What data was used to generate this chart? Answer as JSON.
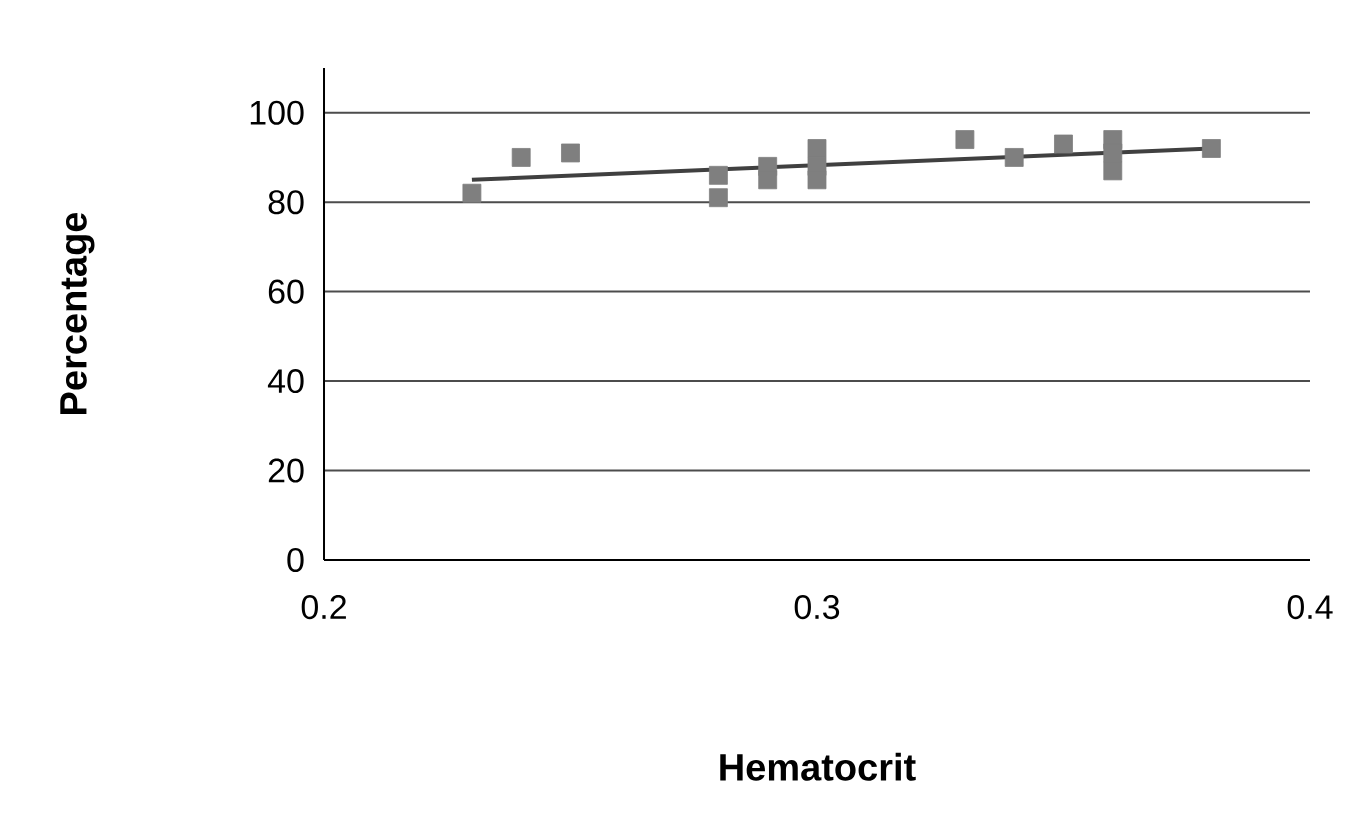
{
  "chart_data": {
    "type": "scatter",
    "xlabel": "Hematocrit",
    "ylabel": "Percentage",
    "xlim": [
      0.2,
      0.4
    ],
    "xticks": [
      0.2,
      0.3,
      0.4
    ],
    "ylim": [
      0,
      110
    ],
    "yticks": [
      0,
      20,
      40,
      60,
      80,
      100
    ],
    "grid": "y",
    "marker": "square",
    "series": [
      {
        "color": "#7f7f7f",
        "x": [
          0.23,
          0.24,
          0.25,
          0.28,
          0.28,
          0.29,
          0.29,
          0.3,
          0.3,
          0.3,
          0.33,
          0.34,
          0.35,
          0.36,
          0.36,
          0.36,
          0.38
        ],
        "values": [
          82,
          90,
          91,
          86,
          81,
          88,
          85,
          92,
          88,
          85,
          94,
          90,
          93,
          94,
          91,
          87,
          92
        ]
      },
      {
        "type": "line",
        "marker": "none",
        "color": "#404040",
        "x": [
          0.23,
          0.38
        ],
        "values": [
          85,
          92
        ]
      }
    ]
  }
}
